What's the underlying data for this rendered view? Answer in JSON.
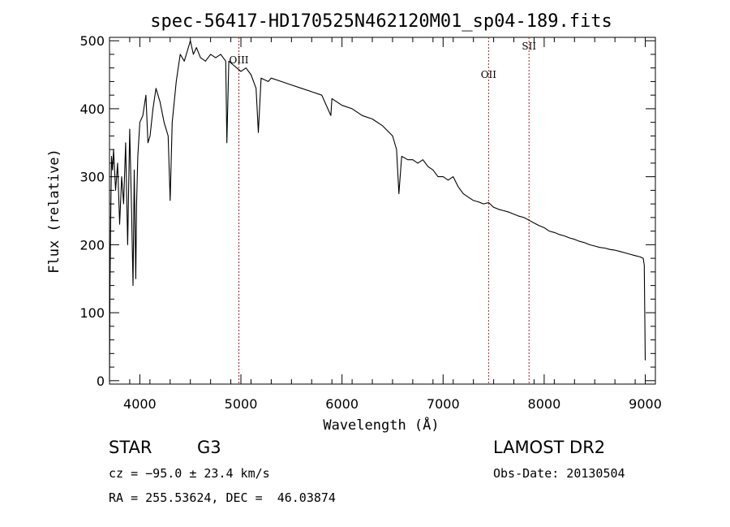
{
  "chart_data": {
    "type": "line",
    "title": "spec-56417-HD170525N462120M01_sp04-189.fits",
    "xlabel": "Wavelength (Å)",
    "ylabel": "Flux (relative)",
    "xlim": [
      3700,
      9100
    ],
    "ylim": [
      -5,
      505
    ],
    "xticks": [
      4000,
      5000,
      6000,
      7000,
      8000,
      9000
    ],
    "yticks": [
      0,
      100,
      200,
      300,
      400,
      500
    ],
    "grid": false,
    "legend": "none",
    "line_color": "#000000",
    "marker_color": "#b22222",
    "markers": [
      {
        "label": "OIII",
        "x": 4980
      },
      {
        "label": "OII",
        "x": 7450
      },
      {
        "label": "SII",
        "x": 7850
      }
    ],
    "series": [
      {
        "x": [
          3700,
          3705,
          3712,
          3720,
          3730,
          3740,
          3760,
          3780,
          3800,
          3820,
          3840,
          3860,
          3880,
          3900,
          3920,
          3933,
          3945,
          3960,
          3968,
          3980,
          4000,
          4030,
          4060,
          4080,
          4101,
          4130,
          4160,
          4200,
          4240,
          4280,
          4300,
          4320,
          4340,
          4360,
          4380,
          4400,
          4440,
          4480,
          4500,
          4530,
          4560,
          4600,
          4650,
          4700,
          4750,
          4800,
          4850,
          4861,
          4880,
          4920,
          4960,
          5000,
          5050,
          5100,
          5150,
          5172,
          5200,
          5270,
          5300,
          5400,
          5500,
          5600,
          5700,
          5800,
          5890,
          5900,
          6000,
          6100,
          6200,
          6300,
          6400,
          6500,
          6540,
          6563,
          6590,
          6650,
          6700,
          6750,
          6800,
          6850,
          6900,
          6950,
          7000,
          7050,
          7100,
          7150,
          7200,
          7250,
          7300,
          7350,
          7400,
          7450,
          7500,
          7550,
          7600,
          7650,
          7700,
          7750,
          7800,
          7850,
          7900,
          7950,
          8000,
          8050,
          8100,
          8150,
          8200,
          8250,
          8300,
          8350,
          8400,
          8450,
          8500,
          8550,
          8600,
          8650,
          8700,
          8750,
          8800,
          8850,
          8900,
          8950,
          8980,
          8990,
          8995,
          9000
        ],
        "y": [
          0,
          140,
          240,
          330,
          310,
          340,
          280,
          320,
          230,
          300,
          260,
          350,
          200,
          370,
          240,
          140,
          310,
          150,
          260,
          330,
          380,
          390,
          420,
          350,
          360,
          400,
          430,
          410,
          380,
          360,
          265,
          380,
          410,
          440,
          460,
          480,
          470,
          490,
          500,
          480,
          490,
          475,
          470,
          480,
          475,
          480,
          470,
          350,
          470,
          465,
          460,
          455,
          460,
          450,
          430,
          365,
          445,
          440,
          445,
          440,
          435,
          430,
          425,
          420,
          390,
          415,
          405,
          400,
          390,
          385,
          375,
          360,
          340,
          275,
          330,
          325,
          325,
          320,
          325,
          315,
          310,
          300,
          300,
          295,
          300,
          285,
          275,
          270,
          265,
          263,
          260,
          262,
          255,
          252,
          250,
          248,
          245,
          242,
          240,
          236,
          232,
          228,
          225,
          220,
          218,
          215,
          213,
          210,
          208,
          205,
          203,
          200,
          198,
          196,
          195,
          193,
          192,
          190,
          188,
          186,
          184,
          182,
          180,
          170,
          100,
          30
        ]
      }
    ]
  },
  "info": {
    "object_class": "STAR",
    "spectral_type": "G3",
    "survey": "LAMOST DR2",
    "cz_line": "cz = −95.0 ± 23.4 km/s",
    "obs_date_line": "Obs-Date: 20130504",
    "coords_line": "RA = 255.53624, DEC =  46.03874"
  }
}
